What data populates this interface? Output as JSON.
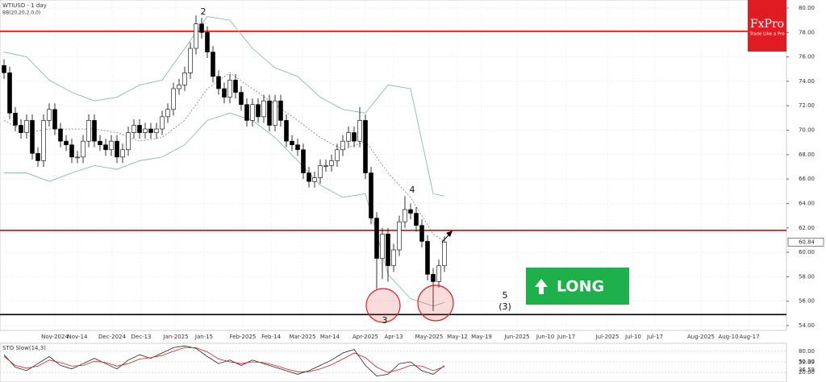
{
  "chart_data": {
    "type": "candlestick",
    "title": "WTIUSD - 1 day",
    "indicator": "BB(20,20,2.0,0)",
    "open": [
      75.3,
      74.7,
      71.4,
      70.4,
      69.8,
      70.8,
      68.1,
      67.5,
      70.8,
      71.7,
      70.1,
      69.1,
      68.8,
      67.8,
      67.8,
      69.1,
      70.8,
      69.1,
      68.8,
      68.4,
      69.1,
      67.8,
      68.4,
      69.8,
      70.4,
      69.8,
      70.1,
      69.8,
      70.1,
      71.1,
      71.7,
      73.4,
      73.7,
      74.7,
      76.7,
      78.7,
      78.0,
      76.4,
      74.4,
      73.4,
      72.7,
      74.1,
      73.1,
      72.1,
      70.8,
      72.1,
      71.1,
      72.4,
      70.4,
      72.4,
      70.8,
      69.1,
      68.8,
      68.4,
      66.5,
      65.8,
      66.1,
      67.1,
      67.1,
      67.5,
      68.4,
      69.1,
      69.8,
      69.1,
      70.8,
      66.5,
      62.8,
      59.5,
      61.5,
      58.9,
      60.2,
      62.5,
      63.5,
      63.2,
      62.2,
      60.9,
      58.2,
      57.6,
      58.9
    ],
    "high": [
      75.8,
      75.2,
      71.9,
      70.9,
      71.3,
      71.3,
      68.6,
      71.3,
      72.2,
      72.2,
      70.6,
      69.6,
      69.3,
      68.3,
      69.6,
      71.3,
      71.3,
      69.6,
      69.3,
      69.6,
      69.6,
      68.9,
      70.3,
      70.9,
      70.9,
      70.6,
      70.6,
      70.6,
      71.6,
      72.2,
      73.9,
      74.2,
      75.2,
      77.2,
      79.4,
      79.2,
      78.5,
      76.9,
      74.9,
      73.9,
      74.6,
      74.6,
      73.6,
      72.6,
      72.6,
      72.6,
      72.9,
      72.9,
      72.9,
      72.9,
      71.3,
      69.6,
      69.3,
      68.9,
      67.0,
      66.6,
      67.6,
      67.6,
      68.0,
      68.9,
      69.6,
      70.3,
      70.3,
      71.9,
      71.3,
      67.0,
      63.3,
      62.0,
      62.0,
      60.7,
      63.0,
      64.6,
      64.0,
      63.7,
      62.7,
      61.4,
      58.7,
      59.4,
      61.3
    ],
    "low": [
      74.2,
      70.9,
      69.9,
      69.3,
      69.3,
      67.6,
      67.0,
      67.0,
      70.3,
      69.6,
      68.6,
      68.3,
      67.3,
      67.3,
      67.3,
      68.6,
      68.6,
      68.3,
      67.9,
      67.9,
      67.3,
      67.3,
      67.9,
      69.3,
      69.3,
      69.3,
      69.3,
      69.3,
      69.6,
      70.6,
      71.2,
      72.9,
      73.2,
      74.2,
      76.2,
      77.5,
      75.9,
      73.9,
      72.9,
      72.2,
      72.2,
      72.6,
      71.6,
      70.3,
      70.3,
      70.6,
      70.6,
      69.9,
      69.9,
      70.3,
      68.6,
      68.3,
      67.9,
      66.0,
      65.3,
      65.3,
      65.6,
      66.6,
      66.6,
      67.0,
      67.9,
      68.6,
      68.6,
      68.6,
      66.0,
      62.3,
      57.0,
      57.8,
      57.6,
      58.4,
      59.7,
      62.0,
      62.7,
      61.7,
      60.4,
      57.7,
      55.2,
      57.1,
      58.4
    ],
    "close": [
      74.7,
      71.4,
      70.4,
      69.8,
      70.8,
      68.1,
      67.5,
      70.8,
      71.7,
      70.1,
      69.1,
      68.8,
      67.8,
      67.8,
      69.1,
      70.8,
      69.1,
      68.8,
      68.4,
      69.1,
      67.8,
      68.4,
      69.8,
      70.4,
      69.8,
      70.1,
      69.8,
      70.1,
      71.1,
      71.7,
      73.4,
      73.7,
      74.7,
      76.7,
      78.7,
      78.0,
      76.4,
      74.4,
      73.4,
      72.7,
      74.1,
      73.1,
      72.1,
      70.8,
      72.1,
      71.1,
      72.4,
      70.4,
      72.4,
      70.8,
      69.1,
      68.8,
      68.4,
      66.5,
      65.8,
      66.1,
      67.1,
      67.1,
      67.5,
      68.4,
      69.1,
      69.8,
      69.1,
      70.8,
      66.5,
      62.8,
      59.5,
      61.5,
      58.9,
      60.2,
      62.5,
      63.5,
      63.2,
      62.2,
      60.9,
      58.2,
      57.6,
      58.9,
      60.84
    ],
    "up_color": "#ffffff",
    "down_color": "#000000",
    "bands": {
      "x": [
        0,
        4,
        8,
        12,
        16,
        20,
        24,
        28,
        32,
        36,
        40,
        44,
        48,
        52,
        56,
        60,
        64,
        68,
        72,
        76,
        78
      ],
      "color": "#7fb49a",
      "mid_color": "#555555",
      "upper": [
        76.4,
        76.0,
        74.1,
        73.1,
        72.4,
        72.7,
        73.7,
        74.1,
        76.7,
        79.3,
        79.0,
        76.7,
        75.1,
        74.4,
        72.7,
        71.7,
        71.4,
        73.7,
        73.4,
        64.8,
        64.6
      ],
      "middle": [
        70.8,
        69.8,
        70.1,
        70.1,
        70.1,
        69.8,
        69.1,
        69.4,
        70.8,
        73.4,
        74.7,
        73.4,
        72.1,
        70.8,
        69.4,
        68.4,
        69.1,
        66.5,
        64.5,
        61.5,
        60.9
      ],
      "lower": [
        66.5,
        66.5,
        65.8,
        66.5,
        67.1,
        66.8,
        67.5,
        67.8,
        68.8,
        70.8,
        71.4,
        70.8,
        69.4,
        67.5,
        65.5,
        64.5,
        64.8,
        58.2,
        56.2,
        55.6,
        55.9
      ]
    },
    "levels": [
      {
        "value": 78.1,
        "color": "#e00000"
      },
      {
        "value": 61.8,
        "color": "#e00000"
      },
      {
        "value": 54.9,
        "color": "#000000"
      }
    ],
    "ylim": [
      54,
      80
    ],
    "yticks": [
      {
        "value": 54,
        "label": "54.00"
      },
      {
        "value": 56,
        "label": "56.00"
      },
      {
        "value": 58,
        "label": "58.00"
      },
      {
        "value": 60,
        "label": "60.00"
      },
      {
        "value": 62,
        "label": "62.00"
      },
      {
        "value": 64,
        "label": "64.00"
      },
      {
        "value": 66,
        "label": "66.00"
      },
      {
        "value": 68,
        "label": "68.00"
      },
      {
        "value": 70,
        "label": "70.00"
      },
      {
        "value": 72,
        "label": "72.00"
      },
      {
        "value": 74,
        "label": "74.00"
      },
      {
        "value": 76,
        "label": "76.00"
      },
      {
        "value": 78,
        "label": "78.00"
      },
      {
        "value": 80,
        "label": "80.00"
      }
    ],
    "x_labels": [
      "Nov-2024",
      "Nov-14",
      "Dec-2024",
      "Dec-13",
      "Jan-2025",
      "Jan-15",
      "Feb-2025",
      "Feb-14",
      "Mar-2025",
      "Mar-14",
      "Apr-2025",
      "Apr-13",
      "May-2025",
      "May-12",
      "May-19",
      "Jun-2025",
      "Jun-10",
      "Jun-17",
      "Jul-2025",
      "Jul-10",
      "Jul-17",
      "Aug-2025",
      "Aug-10",
      "Aug-17"
    ],
    "grid": true,
    "oscillator": {
      "title": "STO Slow(14,3)",
      "x": [
        0,
        2,
        4,
        6,
        8,
        10,
        12,
        14,
        16,
        18,
        20,
        22,
        24,
        26,
        28,
        30,
        32,
        34,
        36,
        38,
        40,
        42,
        44,
        46,
        48,
        50,
        52,
        54,
        56,
        58,
        60,
        62,
        64,
        66,
        68,
        70,
        72,
        74,
        76,
        78
      ],
      "ylim": [
        0,
        100
      ],
      "yticks": [
        {
          "value": 20,
          "label": "20.00"
        },
        {
          "value": 50,
          "label": "50.00"
        },
        {
          "value": 80,
          "label": "80.00"
        }
      ],
      "series": [
        {
          "color": "#222222",
          "values": [
            70,
            35,
            25,
            45,
            65,
            40,
            30,
            45,
            60,
            45,
            30,
            55,
            70,
            60,
            75,
            90,
            95,
            88,
            65,
            45,
            55,
            40,
            55,
            45,
            35,
            25,
            15,
            25,
            40,
            55,
            75,
            85,
            40,
            10,
            15,
            45,
            50,
            25,
            15,
            39.39
          ]
        },
        {
          "color": "#d02020",
          "values": [
            65,
            40,
            32,
            38,
            55,
            48,
            38,
            40,
            52,
            48,
            38,
            45,
            58,
            62,
            68,
            80,
            90,
            90,
            78,
            58,
            50,
            45,
            50,
            48,
            40,
            30,
            22,
            22,
            30,
            42,
            58,
            75,
            62,
            35,
            20,
            28,
            40,
            38,
            25,
            36.59
          ]
        }
      ]
    }
  },
  "annotations": {
    "wave_2": "2",
    "wave_4": "4",
    "wave_3": "3",
    "wave_5": "5",
    "wave_5_alt": "(3)"
  },
  "signal": "LONG",
  "logo": {
    "name": "FxPro",
    "tagline": "Trade Like a Pro"
  }
}
